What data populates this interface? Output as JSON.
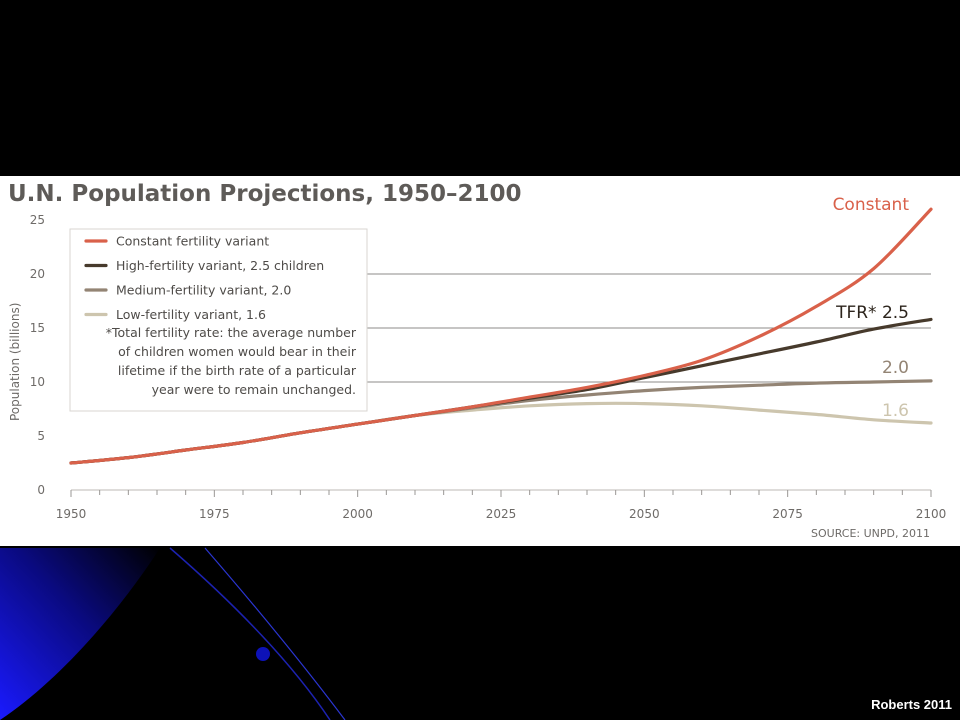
{
  "slide": {
    "credit": "Roberts 2011"
  },
  "colors": {
    "background": "#000000",
    "panel": "#ffffff",
    "accent_blue": "#1a1aff"
  },
  "chart_data": {
    "type": "line",
    "title": "U.N. Population Projections, 1950–2100",
    "ylabel": "Population (billions)",
    "source": "SOURCE: UNPD, 2011",
    "xlim": [
      1950,
      2100
    ],
    "ylim": [
      0,
      25
    ],
    "x_ticks": [
      1950,
      1975,
      2000,
      2025,
      2050,
      2075,
      2100
    ],
    "y_ticks": [
      0,
      5,
      10,
      15,
      20,
      25
    ],
    "gridlines": [
      10,
      15,
      20
    ],
    "legend_position": "top-left",
    "legend": [
      "Constant fertility variant",
      "High-fertility variant, 2.5 children",
      "Medium-fertility variant, 2.0",
      "Low-fertility variant, 1.6"
    ],
    "footnote": [
      "*Total fertility rate: the average number",
      "of children women would bear in their",
      "lifetime if the birth rate of a particular",
      "year were to remain unchanged."
    ],
    "x": [
      1950,
      1960,
      1970,
      1980,
      1990,
      2000,
      2010,
      2020,
      2030,
      2040,
      2050,
      2060,
      2070,
      2080,
      2090,
      2100
    ],
    "series": [
      {
        "name": "Constant",
        "color": "#d9614a",
        "values": [
          2.5,
          3.0,
          3.7,
          4.4,
          5.3,
          6.1,
          6.9,
          7.7,
          8.6,
          9.5,
          10.6,
          12.0,
          14.2,
          17.0,
          20.5,
          26.0
        ]
      },
      {
        "name": "TFR* 2.5",
        "color": "#473a2c",
        "values": [
          2.5,
          3.0,
          3.7,
          4.4,
          5.3,
          6.1,
          6.9,
          7.7,
          8.5,
          9.3,
          10.4,
          11.5,
          12.6,
          13.7,
          14.9,
          15.8
        ]
      },
      {
        "name": "2.0",
        "color": "#938474",
        "values": [
          2.5,
          3.0,
          3.7,
          4.4,
          5.3,
          6.1,
          6.9,
          7.6,
          8.3,
          8.8,
          9.2,
          9.5,
          9.7,
          9.9,
          10.0,
          10.1
        ]
      },
      {
        "name": "1.6",
        "color": "#cdc5ae",
        "values": [
          2.5,
          3.0,
          3.7,
          4.4,
          5.3,
          6.1,
          6.9,
          7.4,
          7.8,
          8.0,
          8.0,
          7.8,
          7.4,
          7.0,
          6.5,
          6.2
        ]
      }
    ]
  }
}
